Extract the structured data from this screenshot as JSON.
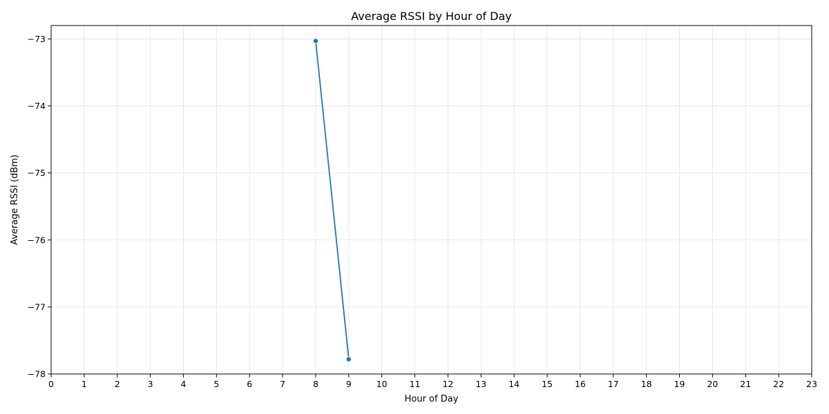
{
  "chart_data": {
    "type": "line",
    "title": "Average RSSI by Hour of Day",
    "xlabel": "Hour of Day",
    "ylabel": "Average RSSI (dBm)",
    "xlim": [
      0,
      23
    ],
    "ylim": [
      -78,
      -72.8
    ],
    "xticks": [
      0,
      1,
      2,
      3,
      4,
      5,
      6,
      7,
      8,
      9,
      10,
      11,
      12,
      13,
      14,
      15,
      16,
      17,
      18,
      19,
      20,
      21,
      22,
      23
    ],
    "yticks": [
      -78,
      -77,
      -76,
      -75,
      -74,
      -73
    ],
    "ytick_labels": [
      "−78",
      "−77",
      "−76",
      "−75",
      "−74",
      "−73"
    ],
    "grid": true,
    "legend": "none",
    "series": [
      {
        "color": "#1f77b4",
        "marker": "circle",
        "x": [
          8,
          9
        ],
        "y": [
          -73.03,
          -77.78
        ]
      }
    ]
  }
}
